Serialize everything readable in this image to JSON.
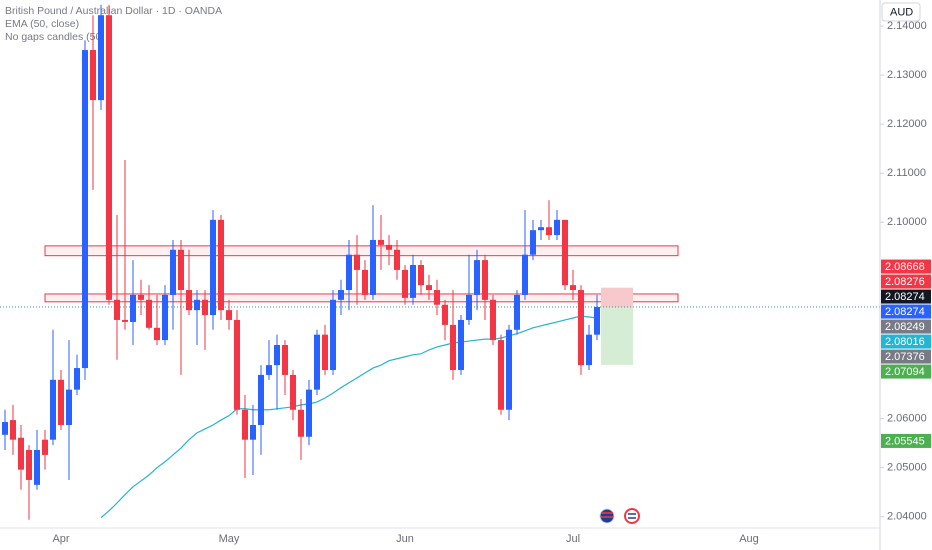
{
  "chart_data": {
    "type": "candlestick",
    "title": "British Pound / Australian Dollar · 1D · OANDA",
    "candle_setting": "No gaps candles (50",
    "currency": "AUD",
    "up_color": "#2962ff",
    "down_color": "#f23645",
    "grid": false,
    "categories": [
      null,
      null,
      null,
      null,
      null,
      null,
      null,
      "Apr",
      null,
      null,
      null,
      null,
      null,
      null,
      null,
      null,
      null,
      null,
      null,
      null,
      null,
      null,
      null,
      null,
      null,
      null,
      null,
      null,
      "May",
      null,
      null,
      null,
      null,
      null,
      null,
      null,
      null,
      null,
      null,
      null,
      null,
      null,
      null,
      null,
      null,
      null,
      null,
      null,
      null,
      null,
      "Jun",
      null,
      null,
      null,
      null,
      null,
      null,
      null,
      null,
      null,
      null,
      null,
      null,
      null,
      null,
      null,
      null,
      null,
      null,
      null,
      null,
      "Jul",
      null,
      null,
      null,
      null,
      null,
      null,
      null,
      null,
      null,
      null,
      null,
      null,
      null,
      null,
      null,
      null,
      null,
      null,
      null,
      null,
      null,
      "Aug",
      null,
      null,
      null,
      null,
      null,
      null,
      null,
      null,
      null,
      null,
      null,
      null,
      null,
      null,
      null,
      null
    ],
    "open": [
      2.0567,
      2.0597,
      2.0561,
      2.0536,
      2.0465,
      2.0557,
      2.0557,
      2.0679,
      2.0587,
      2.0659,
      2.0703,
      2.1351,
      2.1249,
      2.1422,
      2.0842,
      2.0801,
      2.0797,
      2.0852,
      2.0842,
      2.0785,
      2.076,
      2.0852,
      2.0944,
      2.0862,
      2.0821,
      2.0842,
      2.0811,
      2.1005,
      2.0821,
      2.0801,
      2.0618,
      2.0557,
      2.0587,
      2.0689,
      2.0709,
      2.075,
      2.0689,
      2.0618,
      2.0563,
      2.0659,
      2.0771,
      2.0699,
      2.0842,
      2.0862,
      2.0934,
      2.0903,
      2.0852,
      2.0964,
      2.0954,
      2.0944,
      2.0903,
      2.0846,
      2.0913,
      2.0872,
      2.0862,
      2.0832,
      2.0791,
      2.0699,
      2.0801,
      2.0852,
      2.0923,
      2.0842,
      2.076,
      2.0618,
      2.0781,
      2.0852,
      2.0934,
      2.0984,
      2.099,
      2.0974,
      2.1005,
      2.0872,
      2.0862,
      2.0709,
      2.0771,
      null,
      null,
      null,
      null,
      null,
      null,
      null,
      null,
      null,
      null,
      null,
      null,
      null,
      null,
      null,
      null,
      null,
      null,
      null,
      null,
      null,
      null,
      null,
      null,
      null,
      null,
      null,
      null,
      null,
      null,
      null,
      null,
      null,
      null,
      null
    ],
    "high": [
      2.0618,
      2.0628,
      2.0587,
      2.0546,
      2.0577,
      2.0577,
      2.0781,
      2.0699,
      2.076,
      2.073,
      2.1371,
      2.1422,
      2.1443,
      2.1443,
      2.1015,
      2.1127,
      2.0923,
      2.0883,
      2.0872,
      2.0852,
      2.0872,
      2.0964,
      2.0964,
      2.0944,
      2.0862,
      2.0862,
      2.1025,
      2.1015,
      2.0842,
      2.0821,
      2.0648,
      2.0628,
      2.0709,
      2.076,
      2.0771,
      2.076,
      2.0699,
      2.064,
      2.0679,
      2.0781,
      2.0791,
      2.0862,
      2.0883,
      2.0964,
      2.0974,
      2.0923,
      2.1035,
      2.1015,
      2.0974,
      2.0964,
      2.0913,
      2.0934,
      2.0923,
      2.0893,
      2.0883,
      2.0842,
      2.0862,
      2.0811,
      2.0934,
      2.0944,
      2.0934,
      2.0852,
      2.0771,
      2.0791,
      2.0862,
      2.1025,
      2.1005,
      2.1005,
      2.1045,
      2.1025,
      2.1005,
      2.0903,
      2.0872,
      2.0791,
      2.0852,
      null,
      null,
      null,
      null,
      null,
      null,
      null,
      null,
      null,
      null,
      null,
      null,
      null,
      null,
      null,
      null,
      null,
      null,
      null,
      null,
      null,
      null,
      null,
      null,
      null,
      null,
      null,
      null,
      null,
      null,
      null,
      null,
      null,
      null,
      null
    ],
    "low": [
      2.0536,
      2.0526,
      2.0455,
      2.0394,
      2.0455,
      2.0496,
      2.0546,
      2.0577,
      2.0475,
      2.0648,
      2.0679,
      2.1066,
      2.1229,
      2.0832,
      2.072,
      2.0781,
      2.075,
      2.0811,
      2.0781,
      2.075,
      2.075,
      2.0781,
      2.0689,
      2.0811,
      2.075,
      2.074,
      2.0781,
      2.0801,
      2.0781,
      2.0608,
      2.0479,
      2.0485,
      2.0526,
      2.0679,
      2.0618,
      2.0648,
      2.0597,
      2.0516,
      2.0546,
      2.0648,
      2.0689,
      2.0689,
      2.0811,
      2.0821,
      2.0832,
      2.0842,
      2.0842,
      2.0903,
      2.0913,
      2.0883,
      2.0832,
      2.0832,
      2.0852,
      2.0842,
      2.0811,
      2.076,
      2.0679,
      2.0689,
      2.0791,
      2.0821,
      2.0801,
      2.075,
      2.0608,
      2.0597,
      2.0771,
      2.0842,
      2.0923,
      2.0964,
      2.0964,
      2.0964,
      2.0862,
      2.0842,
      2.0689,
      2.0699,
      2.076,
      null,
      null,
      null,
      null,
      null,
      null,
      null,
      null,
      null,
      null,
      null,
      null,
      null,
      null,
      null,
      null,
      null,
      null,
      null,
      null,
      null,
      null,
      null,
      null,
      null,
      null,
      null,
      null,
      null,
      null,
      null,
      null,
      null,
      null,
      null
    ],
    "close": [
      2.0593,
      2.0557,
      2.0496,
      2.0475,
      2.0536,
      2.0526,
      2.0679,
      2.0587,
      2.0659,
      2.0703,
      2.1351,
      2.1249,
      2.1422,
      2.0842,
      2.0801,
      2.0797,
      2.0852,
      2.0842,
      2.0785,
      2.076,
      2.0852,
      2.0944,
      2.0862,
      2.0821,
      2.0842,
      2.0811,
      2.1005,
      2.0821,
      2.0801,
      2.0618,
      2.0557,
      2.0587,
      2.0689,
      2.0709,
      2.075,
      2.0689,
      2.0618,
      2.0563,
      2.0659,
      2.0771,
      2.0699,
      2.0842,
      2.0862,
      2.0934,
      2.0903,
      2.0852,
      2.0964,
      2.0954,
      2.0944,
      2.0903,
      2.0846,
      2.0913,
      2.0872,
      2.0862,
      2.0832,
      2.0791,
      2.0699,
      2.0801,
      2.0852,
      2.0923,
      2.0842,
      2.076,
      2.0618,
      2.0781,
      2.0852,
      2.0934,
      2.0984,
      2.099,
      2.0974,
      2.1005,
      2.0872,
      2.0862,
      2.0709,
      2.0771,
      2.08274,
      null,
      null,
      null,
      null,
      null,
      null,
      null,
      null,
      null,
      null,
      null,
      null,
      null,
      null,
      null,
      null,
      null,
      null,
      null,
      null,
      null,
      null,
      null,
      null,
      null,
      null,
      null,
      null,
      null,
      null,
      null,
      null,
      null,
      null,
      null
    ],
    "series": [
      {
        "name": "EMA (50, close)",
        "color": "#22b5d4",
        "values": [
          null,
          null,
          null,
          null,
          null,
          null,
          null,
          null,
          null,
          null,
          null,
          null,
          2.0398,
          2.0412,
          2.0428,
          2.0445,
          2.0461,
          2.0473,
          2.0485,
          2.05,
          2.0512,
          2.0526,
          2.054,
          2.0557,
          2.0571,
          2.0579,
          2.0587,
          2.0597,
          2.0606,
          2.062,
          2.062,
          2.0618,
          2.0618,
          2.0618,
          2.062,
          2.0622,
          2.0624,
          2.0628,
          2.063,
          2.0634,
          2.0642,
          2.0652,
          2.0663,
          2.0673,
          2.0683,
          2.0693,
          2.0703,
          2.0709,
          2.0718,
          2.0722,
          2.0726,
          2.073,
          2.0732,
          2.074,
          2.0746,
          2.075,
          2.0754,
          2.0756,
          2.0758,
          2.076,
          2.0762,
          2.0762,
          2.0764,
          2.0769,
          2.0773,
          2.0779,
          2.0785,
          2.0789,
          2.0793,
          2.0797,
          2.0801,
          2.0805,
          2.0809,
          2.0807,
          2.0805,
          null,
          null,
          null,
          null,
          null,
          null,
          null,
          null,
          null,
          null,
          null,
          null,
          null,
          null,
          null,
          null,
          null,
          null,
          null,
          null,
          null,
          null,
          null,
          null,
          null,
          null,
          null,
          null,
          null,
          null,
          null,
          null,
          null,
          null,
          null
        ]
      }
    ],
    "ylim": [
      2.0373,
      2.1453
    ],
    "yticks": [
      {
        "value": 2.14,
        "label": "2.14000"
      },
      {
        "value": 2.13,
        "label": "2.13000"
      },
      {
        "value": 2.12,
        "label": "2.12000"
      },
      {
        "value": 2.11,
        "label": "2.11000"
      },
      {
        "value": 2.1,
        "label": "2.10000"
      },
      {
        "value": 2.06,
        "label": "2.06000"
      },
      {
        "value": 2.05,
        "label": "2.05000"
      },
      {
        "value": 2.04,
        "label": "2.04000"
      }
    ],
    "zones": [
      {
        "low": 2.0932,
        "high": 2.0952,
        "color": "#f23645"
      },
      {
        "low": 2.0838,
        "high": 2.0854,
        "color": "#f23645"
      }
    ],
    "position": {
      "entry": 2.08274,
      "stop": 2.08668,
      "target": 2.07094,
      "stop_color": "#f7c9cc",
      "target_color": "#d5ecd5"
    },
    "price_labels": [
      {
        "value": 2.08668,
        "color": "#f23645"
      },
      {
        "value": 2.08276,
        "color": "#f23645"
      },
      {
        "value": 2.08274,
        "color": "#131722"
      },
      {
        "value": 2.08274,
        "color": "#2962ff"
      },
      {
        "value": 2.08249,
        "color": "#787b86"
      },
      {
        "value": 2.08016,
        "color": "#22b5d4"
      },
      {
        "value": 2.07376,
        "color": "#787b86"
      },
      {
        "value": 2.07094,
        "color": "#4caf50"
      },
      {
        "value": 2.05545,
        "color": "#4caf50"
      }
    ]
  }
}
